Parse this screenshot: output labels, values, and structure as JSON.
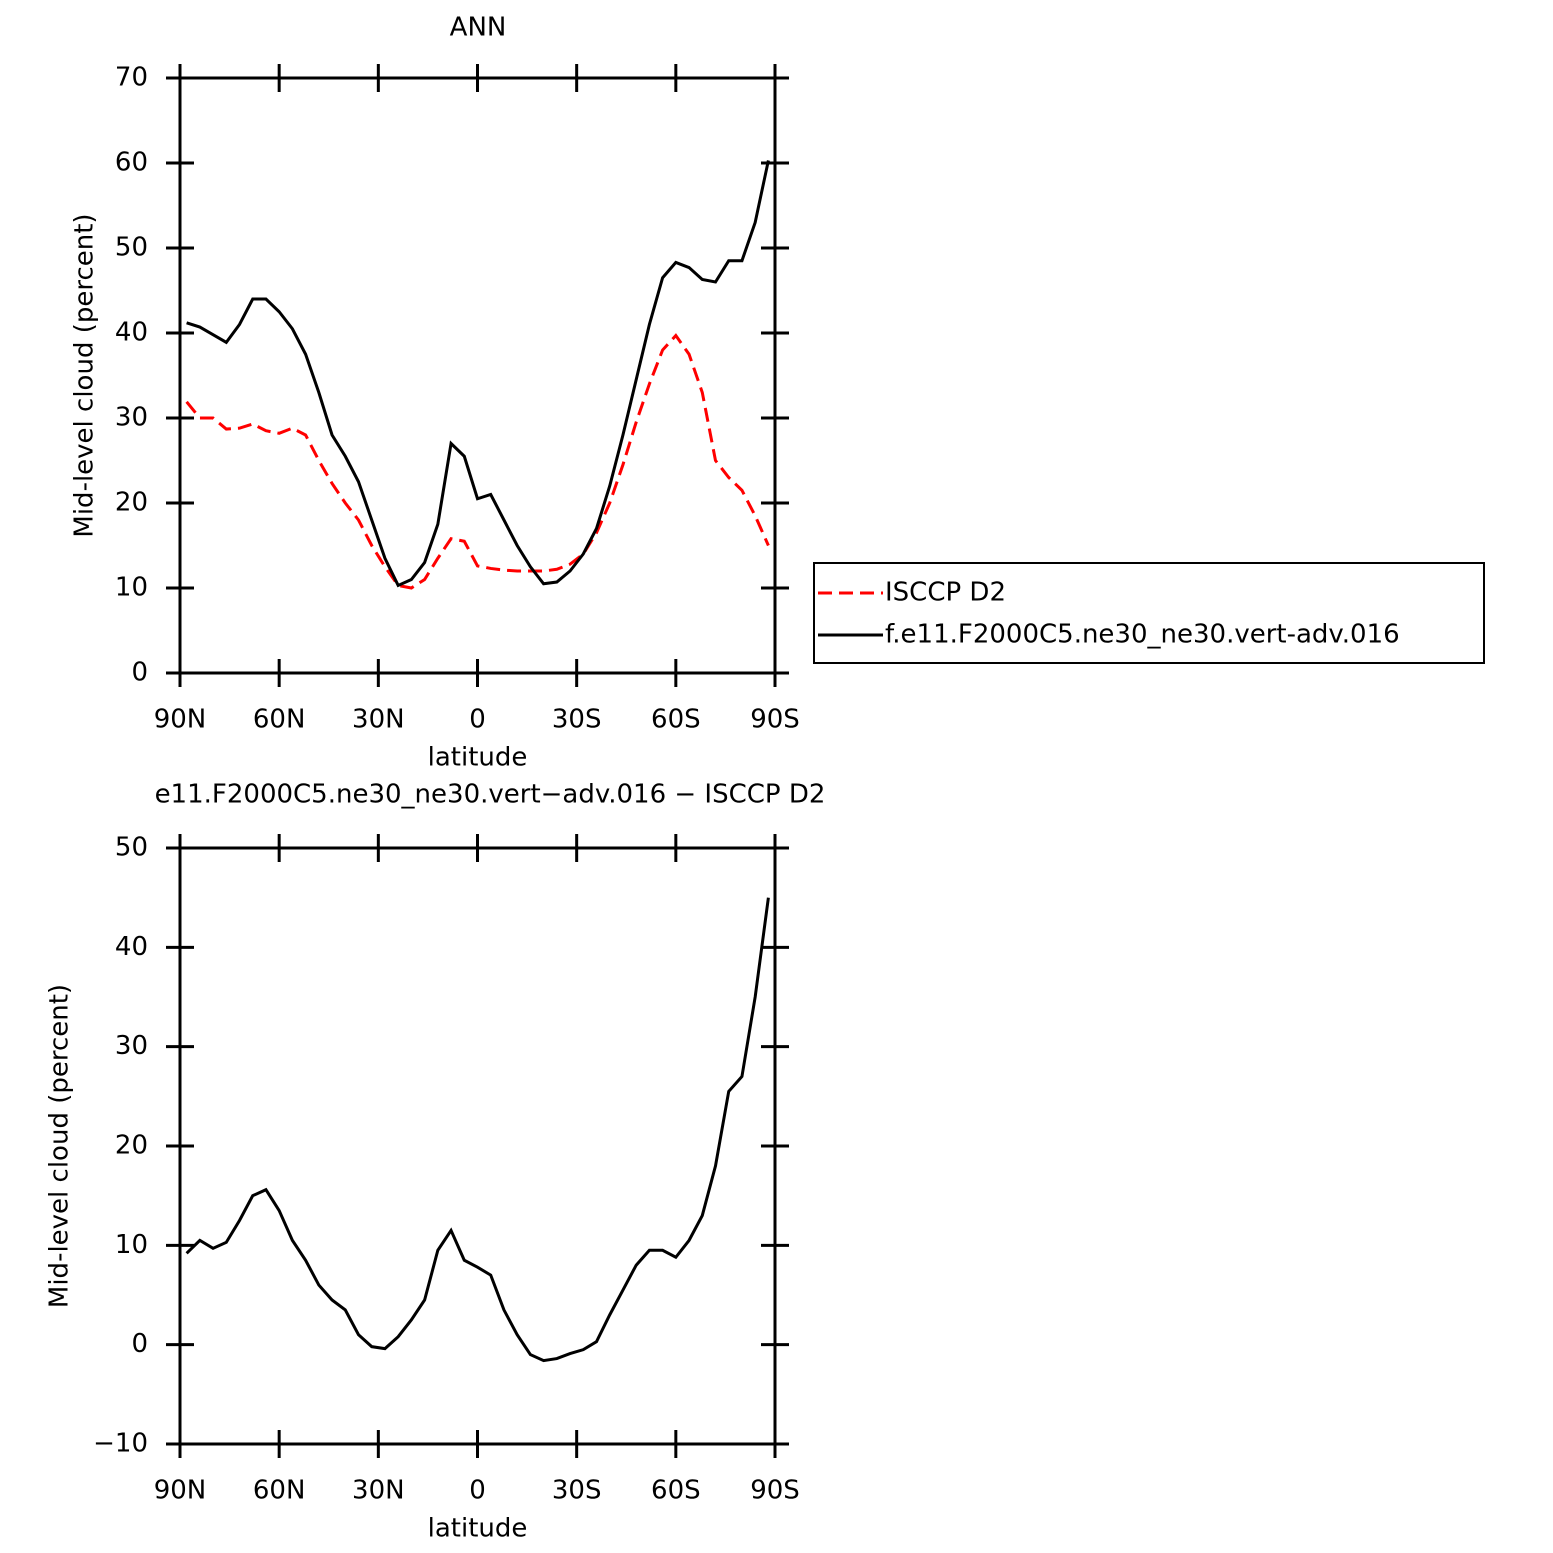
{
  "chart_data": [
    {
      "type": "line",
      "title": "ANN",
      "xlabel": "latitude",
      "ylabel": "Mid-level cloud (percent)",
      "x": [
        88,
        84,
        80,
        76,
        72,
        68,
        64,
        60,
        56,
        52,
        48,
        44,
        40,
        36,
        32,
        28,
        24,
        20,
        16,
        12,
        8,
        4,
        0,
        -4,
        -8,
        -12,
        -16,
        -20,
        -24,
        -28,
        -32,
        -36,
        -40,
        -44,
        -48,
        -52,
        -56,
        -60,
        -64,
        -68,
        -72,
        -76,
        -80,
        -84,
        -88
      ],
      "series": [
        {
          "name": "ISCCP D2",
          "color": "#ff0000",
          "dashed": true,
          "values": [
            31.9,
            30,
            30,
            28.7,
            28.8,
            29.3,
            28.5,
            28.2,
            28.8,
            28,
            25,
            22.3,
            20,
            18,
            15,
            12.5,
            10.3,
            10,
            11,
            13.5,
            15.8,
            15.5,
            12.6,
            12.3,
            12.1,
            12,
            12,
            12,
            12.2,
            12.8,
            14,
            16.5,
            20,
            24.5,
            29.5,
            34,
            38,
            39.7,
            37.5,
            33,
            25,
            23,
            21.5,
            18.5,
            15
          ]
        },
        {
          "name": "f.e11.F2000C5.ne30_ne30.vert-adv.016",
          "color": "#000000",
          "dashed": false,
          "values": [
            41.2,
            40.7,
            39.8,
            38.9,
            41,
            44,
            44,
            42.5,
            40.5,
            37.5,
            33,
            28,
            25.5,
            22.5,
            18,
            13.5,
            10.3,
            11,
            13,
            17.5,
            27,
            25.5,
            20.5,
            21,
            18,
            15,
            12.5,
            10.5,
            10.7,
            12,
            14,
            17,
            22,
            28,
            34.5,
            41,
            46.5,
            48.3,
            47.7,
            46.3,
            46,
            48.5,
            48.5,
            53,
            60.3
          ]
        }
      ],
      "xlim": [
        90,
        -90
      ],
      "xticks": [
        {
          "value": 90,
          "label": "90N"
        },
        {
          "value": 60,
          "label": "60N"
        },
        {
          "value": 30,
          "label": "30N"
        },
        0,
        {
          "value": -30,
          "label": "30S"
        },
        {
          "value": -60,
          "label": "60S"
        },
        {
          "value": -90,
          "label": "90S"
        }
      ],
      "ylim": [
        0,
        70
      ],
      "yticks": [
        0,
        10,
        20,
        30,
        40,
        50,
        60,
        70
      ],
      "legend": "right"
    },
    {
      "type": "line",
      "title": "e11.F2000C5.ne30_ne30.vert−adv.016 − ISCCP D2",
      "xlabel": "latitude",
      "ylabel": "Mid-level cloud (percent)",
      "x": [
        88,
        84,
        80,
        76,
        72,
        68,
        64,
        60,
        56,
        52,
        48,
        44,
        40,
        36,
        32,
        28,
        24,
        20,
        16,
        12,
        8,
        4,
        0,
        -4,
        -8,
        -12,
        -16,
        -20,
        -24,
        -28,
        -32,
        -36,
        -40,
        -44,
        -48,
        -52,
        -56,
        -60,
        -64,
        -68,
        -72,
        -76,
        -80,
        -84,
        -88
      ],
      "series": [
        {
          "color": "#000000",
          "dashed": false,
          "values": [
            9.2,
            10.5,
            9.7,
            10.3,
            12.5,
            15,
            15.6,
            13.5,
            10.5,
            8.5,
            6,
            4.5,
            3.5,
            1,
            -0.2,
            -0.4,
            0.8,
            2.5,
            4.5,
            9.5,
            11.5,
            8.5,
            7.8,
            7,
            3.5,
            1,
            -1,
            -1.6,
            -1.4,
            -0.9,
            -0.5,
            0.3,
            3,
            5.5,
            8,
            9.5,
            9.5,
            8.8,
            10.5,
            13,
            18,
            25.5,
            27,
            35,
            45
          ]
        }
      ],
      "xlim": [
        90,
        -90
      ],
      "xticks": [
        {
          "value": 90,
          "label": "90N"
        },
        {
          "value": 60,
          "label": "60N"
        },
        {
          "value": 30,
          "label": "30N"
        },
        0,
        {
          "value": -30,
          "label": "30S"
        },
        {
          "value": -60,
          "label": "60S"
        },
        {
          "value": -90,
          "label": "90S"
        }
      ],
      "ylim": [
        -10,
        50
      ],
      "yticks": [
        {
          "value": -10,
          "label": "−10"
        },
        0,
        10,
        20,
        30,
        40,
        50
      ]
    }
  ]
}
